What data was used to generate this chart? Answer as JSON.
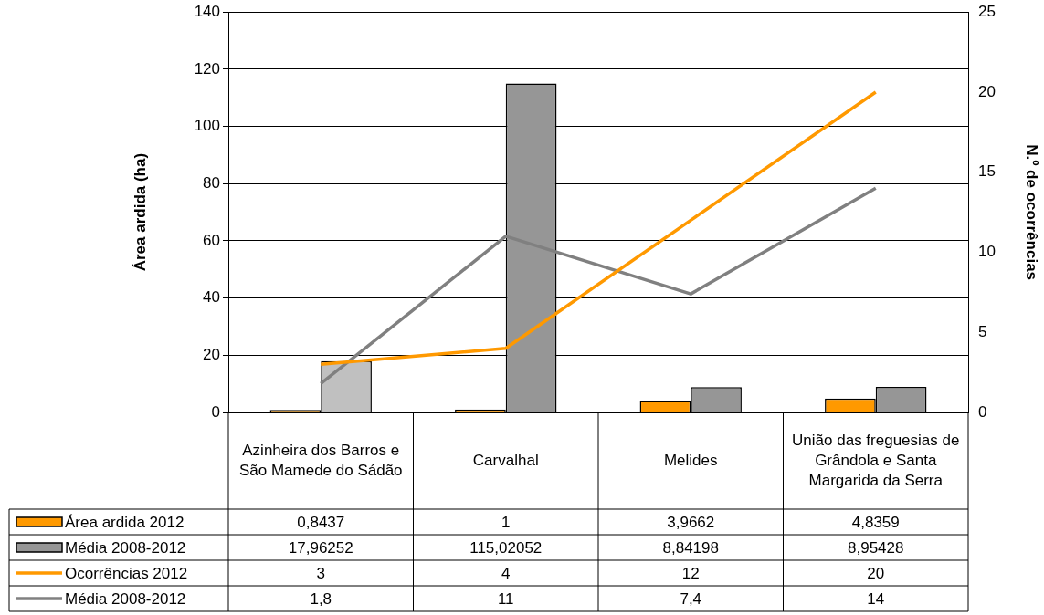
{
  "chart_data": {
    "type": "bar",
    "ylabel": "Área ardida (ha)",
    "y2label": "N.º de ocorrências",
    "categories": [
      "Azinheira dos Barros e São Mamede do Sádão",
      "Carvalhal",
      "Melides",
      "União das freguesias de Grândola e Santa Margarida da Serra"
    ],
    "series": [
      {
        "name": "Área ardida 2012",
        "color": "#ff9900",
        "values": [
          0.8437,
          1,
          3.9662,
          4.8359
        ],
        "value_labels": [
          "0,8437",
          "1",
          "3,9662",
          "4,8359"
        ]
      },
      {
        "name": "Média 2008-2012",
        "color": "#969696",
        "colors": [
          "#c0c0c0",
          "#969696",
          "#969696",
          "#969696"
        ],
        "values": [
          17.96252,
          115.02052,
          8.84198,
          8.95428
        ],
        "value_labels": [
          "17,96252",
          "115,02052",
          "8,84198",
          "8,95428"
        ]
      },
      {
        "name": "Ocorrências 2012",
        "type": "line",
        "axis": "y2",
        "color": "#ff9900",
        "values": [
          3,
          4,
          12,
          20
        ],
        "value_labels": [
          "3",
          "4",
          "12",
          "20"
        ]
      },
      {
        "name": "Média 2008-2012",
        "type": "line",
        "axis": "y2",
        "color": "#808080",
        "values": [
          1.8,
          11,
          7.4,
          14
        ],
        "value_labels": [
          "1,8",
          "11",
          "7,4",
          "14"
        ]
      }
    ],
    "ylim": [
      0,
      140
    ],
    "yticks": [
      0,
      20,
      40,
      60,
      80,
      100,
      120,
      140
    ],
    "y2lim": [
      0,
      25
    ],
    "y2ticks": [
      0,
      5,
      10,
      15,
      20,
      25
    ],
    "grid": "y",
    "legend": "bottom left",
    "marker": "none",
    "line_style": "solid"
  }
}
